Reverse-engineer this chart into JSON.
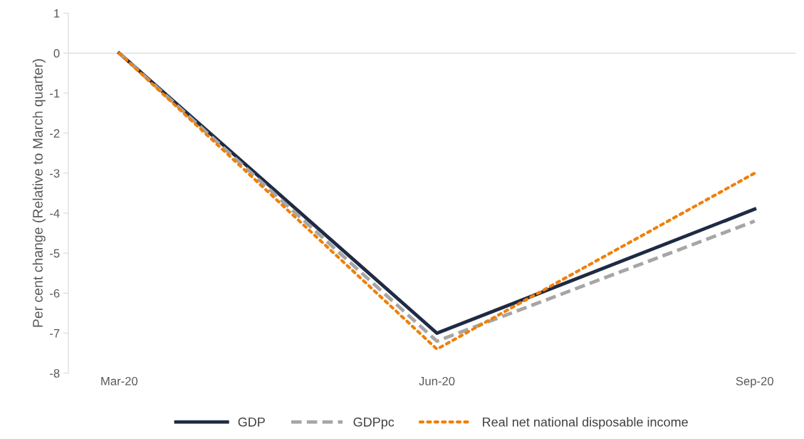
{
  "chart_data": {
    "type": "line",
    "ylabel": "Per cent change (Relative to March quarter)",
    "categories": [
      "Mar-20",
      "Jun-20",
      "Sep-20"
    ],
    "series": [
      {
        "name": "GDP",
        "color": "#1f2a44",
        "values": [
          0,
          -7.0,
          -3.9
        ],
        "line_style": "solid"
      },
      {
        "name": "GDPpc",
        "color": "#a6a6a6",
        "values": [
          0,
          -7.2,
          -4.2
        ],
        "line_style": "dashed"
      },
      {
        "name": "Real net national disposable income",
        "color": "#f07f09",
        "values": [
          0,
          -7.4,
          -3.0
        ],
        "line_style": "dotted"
      }
    ],
    "ylim": [
      -8,
      1
    ],
    "yticks": [
      -8,
      -7,
      -6,
      -5,
      -4,
      -3,
      -2,
      -1,
      0,
      1
    ],
    "ref_lines": [
      {
        "axis": "y",
        "value": 0,
        "color": "#d9d9d9"
      }
    ],
    "grid": false,
    "legend": "bottom",
    "marker": "none"
  }
}
